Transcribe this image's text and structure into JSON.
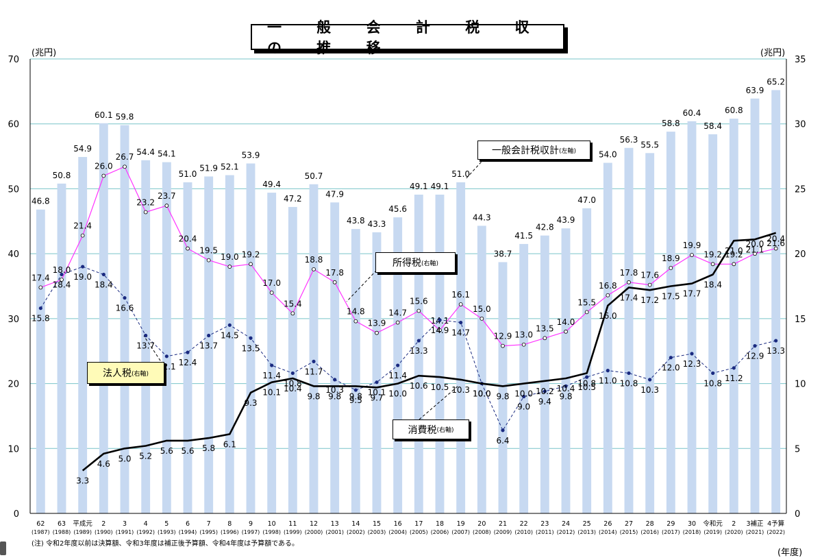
{
  "title": "一 般 会 計 税 収 の 推 移",
  "left_unit": "(兆円)",
  "right_unit": "(兆円)",
  "year_unit": "(年度)",
  "note": "(注) 令和2年度以前は決算額、令和3年度は補正後予算額、令和4年度は予算額である。",
  "callouts": {
    "total_main": "一般会計税収計",
    "total_sub": "(左軸)",
    "income_main": "所得税",
    "income_sub": "(右軸)",
    "corporate_main": "法人税",
    "corporate_sub": "(右軸)",
    "consumption_main": "消費税",
    "consumption_sub": "(右軸)"
  },
  "chart_data": {
    "type": "bar",
    "categories": [
      "62",
      "63",
      "平成元",
      "2",
      "3",
      "4",
      "5",
      "6",
      "7",
      "8",
      "9",
      "10",
      "11",
      "12",
      "13",
      "14",
      "15",
      "16",
      "17",
      "18",
      "19",
      "20",
      "21",
      "22",
      "23",
      "24",
      "25",
      "26",
      "27",
      "28",
      "29",
      "30",
      "令和元",
      "2",
      "3補正",
      "4予算"
    ],
    "categories_sub": [
      "(1987)",
      "(1988)",
      "(1989)",
      "(1990)",
      "(1991)",
      "(1992)",
      "(1993)",
      "(1994)",
      "(1995)",
      "(1996)",
      "(1997)",
      "(1998)",
      "(1999)",
      "(2000)",
      "(2001)",
      "(2002)",
      "(2003)",
      "(2004)",
      "(2005)",
      "(2006)",
      "(2007)",
      "(2008)",
      "(2009)",
      "(2010)",
      "(2011)",
      "(2012)",
      "(2013)",
      "(2014)",
      "(2015)",
      "(2016)",
      "(2017)",
      "(2018)",
      "(2019)",
      "(2020)",
      "(2021)",
      "(2022)"
    ],
    "left_ylim": [
      0,
      70
    ],
    "right_ylim": [
      0,
      35
    ],
    "left_ticks": [
      0,
      10,
      20,
      30,
      40,
      50,
      60,
      70
    ],
    "right_ticks": [
      0,
      5,
      10,
      15,
      20,
      25,
      30,
      35
    ],
    "grid": true,
    "series": [
      {
        "name": "一般会計税収計",
        "axis": "left",
        "kind": "bar",
        "color": "#c7d9f1",
        "values": [
          46.8,
          50.8,
          54.9,
          60.1,
          59.8,
          54.4,
          54.1,
          51.0,
          51.9,
          52.1,
          53.9,
          49.4,
          47.2,
          50.7,
          47.9,
          43.8,
          43.3,
          45.6,
          49.1,
          49.1,
          51.0,
          44.3,
          38.7,
          41.5,
          42.8,
          43.9,
          47.0,
          54.0,
          56.3,
          55.5,
          58.8,
          60.4,
          58.4,
          60.8,
          63.9,
          65.2
        ]
      },
      {
        "name": "所得税",
        "axis": "right",
        "kind": "line",
        "color": "#ff33ff",
        "values": [
          17.4,
          18.0,
          21.4,
          26.0,
          26.7,
          23.2,
          23.7,
          20.4,
          19.5,
          19.0,
          19.2,
          17.0,
          15.4,
          18.8,
          17.8,
          14.8,
          13.9,
          14.7,
          15.6,
          14.1,
          16.1,
          15.0,
          12.9,
          13.0,
          13.5,
          14.0,
          15.5,
          16.8,
          17.8,
          17.6,
          18.9,
          19.9,
          19.2,
          19.2,
          20.0,
          20.4
        ]
      },
      {
        "name": "法人税",
        "axis": "right",
        "kind": "line",
        "color": "#1a2a80",
        "values": [
          15.8,
          18.4,
          19.0,
          18.4,
          16.6,
          13.7,
          12.1,
          12.4,
          13.7,
          14.5,
          13.5,
          11.4,
          10.8,
          11.7,
          10.3,
          9.5,
          10.1,
          11.4,
          13.3,
          14.9,
          14.7,
          10.0,
          6.4,
          9.0,
          9.4,
          9.8,
          10.5,
          11.0,
          10.8,
          10.3,
          12.0,
          12.3,
          10.8,
          11.2,
          12.9,
          13.3
        ]
      },
      {
        "name": "消費税",
        "axis": "right",
        "kind": "line",
        "color": "#000000",
        "values": [
          null,
          null,
          3.3,
          4.6,
          5.0,
          5.2,
          5.6,
          5.6,
          5.8,
          6.1,
          9.3,
          10.1,
          10.4,
          9.8,
          9.8,
          9.8,
          9.7,
          10.0,
          10.6,
          10.5,
          10.3,
          10.0,
          9.8,
          10.0,
          10.2,
          10.4,
          10.8,
          16.0,
          17.4,
          17.2,
          17.5,
          17.7,
          18.4,
          21.0,
          21.1,
          21.6
        ]
      }
    ]
  }
}
